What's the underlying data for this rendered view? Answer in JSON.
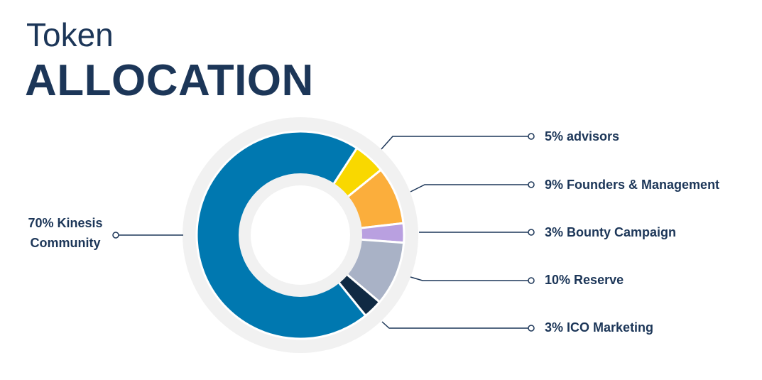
{
  "chart_data": {
    "type": "donut",
    "title": "Token",
    "subtitle": "ALLOCATION",
    "categories": [
      "advisors",
      "Founders & Management",
      "Bounty Campaign",
      "Reserve",
      "ICO Marketing",
      "Kinesis Community"
    ],
    "values": [
      5,
      9,
      3,
      10,
      3,
      70
    ],
    "value_labels": [
      "5%",
      "9%",
      "3%",
      "10%",
      "3%",
      "70%"
    ],
    "colors": [
      "#f9d800",
      "#fbae3c",
      "#b9a0e0",
      "#a9b2c6",
      "#102a43",
      "#0078b0"
    ]
  }
}
